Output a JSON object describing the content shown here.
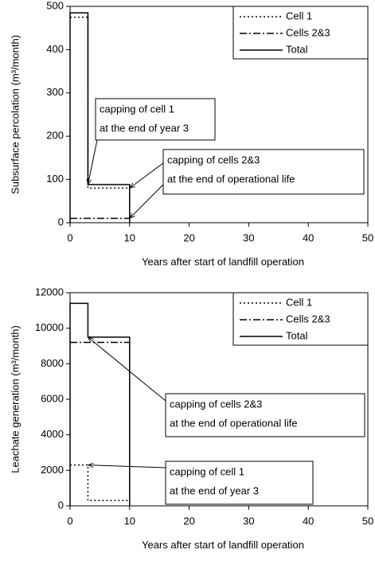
{
  "chart_data": [
    {
      "type": "line",
      "y_label": "Subsurface percolation  (m³/month)",
      "x_label": "Years after start of landfill operation",
      "xlim": [
        0,
        50
      ],
      "ylim": [
        0,
        500
      ],
      "xticks": [
        0,
        10,
        20,
        30,
        40,
        50
      ],
      "yticks": [
        0,
        100,
        200,
        300,
        400,
        500
      ],
      "legend": "top-right",
      "series": [
        {
          "name": "Cell 1",
          "style": "dotted",
          "color": "#000000",
          "x": [
            0,
            3,
            3,
            10
          ],
          "values": [
            475,
            475,
            80,
            80
          ]
        },
        {
          "name": "Cells 2&3",
          "style": "dashdot",
          "color": "#000000",
          "x": [
            0,
            10
          ],
          "values": [
            10,
            10
          ]
        },
        {
          "name": "Total",
          "style": "solid",
          "color": "#000000",
          "x": [
            0,
            0,
            3,
            3,
            10,
            10
          ],
          "values": [
            0,
            485,
            485,
            88,
            88,
            0
          ]
        }
      ],
      "annotations": [
        {
          "lines": [
            "capping of cell 1",
            "at the end of year 3"
          ]
        },
        {
          "lines": [
            "capping of cells 2&3",
            "at the end of operational life"
          ]
        }
      ]
    },
    {
      "type": "line",
      "y_label": "Leachate generation (m³/month)",
      "x_label": "Years after start of landfill operation",
      "xlim": [
        0,
        50
      ],
      "ylim": [
        0,
        12000
      ],
      "xticks": [
        0,
        10,
        20,
        30,
        40,
        50
      ],
      "yticks": [
        0,
        2000,
        4000,
        6000,
        8000,
        10000,
        12000
      ],
      "legend": "top-right",
      "series": [
        {
          "name": "Cell 1",
          "style": "dotted",
          "color": "#000000",
          "x": [
            0,
            3,
            3,
            10
          ],
          "values": [
            2300,
            2300,
            300,
            300
          ]
        },
        {
          "name": "Cells 2&3",
          "style": "dashdot",
          "color": "#000000",
          "x": [
            0,
            10
          ],
          "values": [
            9200,
            9200
          ]
        },
        {
          "name": "Total",
          "style": "solid",
          "color": "#000000",
          "x": [
            0,
            0,
            3,
            3,
            10,
            10
          ],
          "values": [
            0,
            11400,
            11400,
            9500,
            9500,
            0
          ]
        }
      ],
      "annotations": [
        {
          "lines": [
            "capping of cells 2&3",
            "at the end of operational life"
          ]
        },
        {
          "lines": [
            "capping of cell 1",
            "at the end of year 3"
          ]
        }
      ]
    }
  ]
}
